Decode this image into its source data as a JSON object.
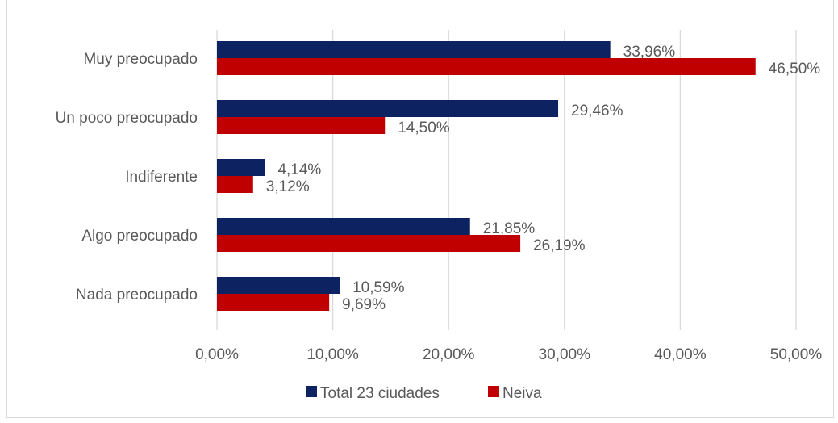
{
  "chart_data": {
    "type": "bar",
    "orientation": "horizontal",
    "title": "",
    "categories": [
      "Muy preocupado",
      "Un poco preocupado",
      "Indiferente",
      "Algo preocupado",
      "Nada preocupado"
    ],
    "series": [
      {
        "name": "Total 23 ciudades",
        "color": "#0d2260",
        "values": [
          33.96,
          29.46,
          4.14,
          21.85,
          10.59
        ],
        "labels": [
          "33,96%",
          "29,46%",
          "4,14%",
          "21,85%",
          "10,59%"
        ]
      },
      {
        "name": "Neiva",
        "color": "#c00000",
        "values": [
          46.5,
          14.5,
          3.12,
          26.19,
          9.69
        ],
        "labels": [
          "46,50%",
          "14,50%",
          "3,12%",
          "26,19%",
          "9,69%"
        ]
      }
    ],
    "xlim": [
      0,
      50
    ],
    "xticks": [
      0,
      10,
      20,
      30,
      40,
      50
    ],
    "xtick_labels": [
      "0,00%",
      "10,00%",
      "20,00%",
      "30,00%",
      "40,00%",
      "50,00%"
    ],
    "xlabel": "",
    "ylabel": "",
    "grid": "vertical",
    "legend_position": "bottom"
  }
}
